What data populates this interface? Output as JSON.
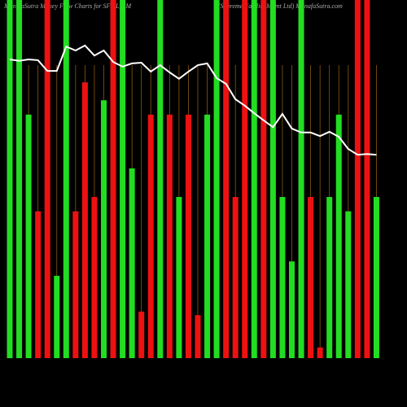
{
  "chart_data": {
    "type": "bar",
    "title": "MunafaSutra  Money Flow  Charts for SFML_SM",
    "subtitle": "(Supreme  Facility Mgmt Ltd) MunafaSutra.com",
    "ylim": [
      0,
      100
    ],
    "series": [
      {
        "name": "Money Flow",
        "type": "bar",
        "values": [
          100,
          100,
          68,
          41,
          100,
          23,
          100,
          41,
          77,
          45,
          72,
          100,
          100,
          53,
          13,
          68,
          100,
          68,
          45,
          68,
          12,
          68,
          100,
          100,
          45,
          100,
          100,
          100,
          100,
          45,
          27,
          100,
          45,
          3,
          45,
          68,
          41,
          100,
          100,
          45
        ],
        "colors": [
          "#22dd22",
          "#22dd22",
          "#22dd22",
          "#ee1111",
          "#ee1111",
          "#22dd22",
          "#22dd22",
          "#ee1111",
          "#ee1111",
          "#ee1111",
          "#22dd22",
          "#ee1111",
          "#22dd22",
          "#22dd22",
          "#ee1111",
          "#ee1111",
          "#22dd22",
          "#ee1111",
          "#22dd22",
          "#ee1111",
          "#ee1111",
          "#22dd22",
          "#22dd22",
          "#ee1111",
          "#ee1111",
          "#ee1111",
          "#22dd22",
          "#ee1111",
          "#22dd22",
          "#22dd22",
          "#22dd22",
          "#22dd22",
          "#ee1111",
          "#ee1111",
          "#22dd22",
          "#22dd22",
          "#22dd22",
          "#ee1111",
          "#ee1111",
          "#22dd22"
        ]
      },
      {
        "name": "Price",
        "type": "line",
        "color": "#ffffff",
        "values": [
          83.4,
          83,
          83.4,
          83.2,
          80.2,
          80.2,
          87,
          85.9,
          87.3,
          84.5,
          85.9,
          82.7,
          81.4,
          82.3,
          82.5,
          80,
          81.8,
          79.8,
          78,
          80,
          81.8,
          82.3,
          78.2,
          76.6,
          72.3,
          70.5,
          68.4,
          66.4,
          64.5,
          68.2,
          64.1,
          63,
          63,
          62,
          63.2,
          61.8,
          58.4,
          56.8,
          57,
          56.8
        ]
      }
    ]
  }
}
